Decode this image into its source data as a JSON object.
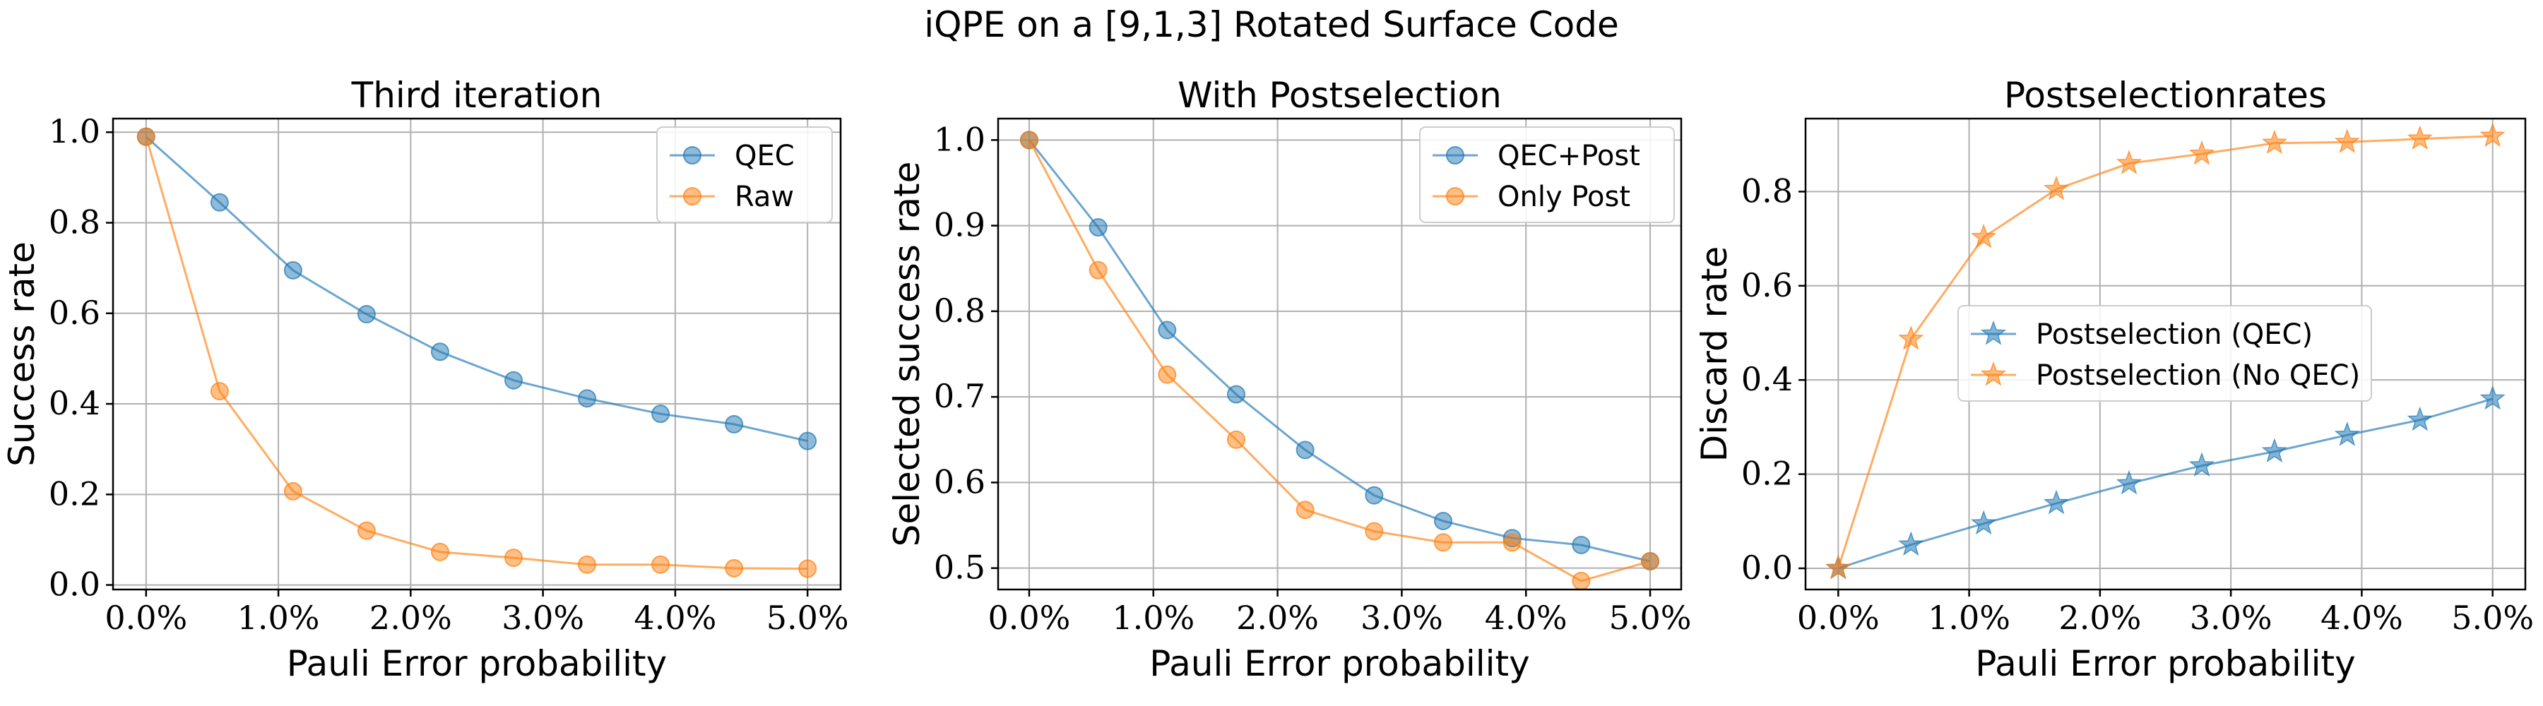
{
  "figure": {
    "suptitle": "iQPE on a [9,1,3] Rotated Surface Code"
  },
  "colors": {
    "blue": "#1f77b4",
    "orange": "#ff7f0e",
    "grid": "#b0b0b0",
    "axes": "#000000"
  },
  "chart_data": [
    {
      "type": "line",
      "title": "Third iteration",
      "xlabel": "Pauli Error probability",
      "ylabel": "Success rate",
      "x": [
        0.0,
        0.5556,
        1.1111,
        1.6667,
        2.2222,
        2.7778,
        3.3333,
        3.8889,
        4.4444,
        5.0
      ],
      "xlim": [
        -0.25,
        5.25
      ],
      "ylim": [
        -0.01,
        1.03
      ],
      "xticks": [
        0.0,
        1.0,
        2.0,
        3.0,
        4.0,
        5.0
      ],
      "xtick_labels": [
        "0.0%",
        "1.0%",
        "2.0%",
        "3.0%",
        "4.0%",
        "5.0%"
      ],
      "yticks": [
        0.0,
        0.2,
        0.4,
        0.6,
        0.8,
        1.0
      ],
      "ytick_labels": [
        "0.0",
        "0.2",
        "0.4",
        "0.6",
        "0.8",
        "1.0"
      ],
      "grid": true,
      "legend_position": "top-right",
      "series": [
        {
          "name": "QEC",
          "color": "#1f77b4",
          "marker": "circle",
          "values": [
            0.99,
            0.845,
            0.695,
            0.598,
            0.515,
            0.452,
            0.412,
            0.378,
            0.355,
            0.318
          ]
        },
        {
          "name": "Raw",
          "color": "#ff7f0e",
          "marker": "circle",
          "values": [
            0.99,
            0.428,
            0.207,
            0.12,
            0.073,
            0.06,
            0.045,
            0.045,
            0.037,
            0.036
          ]
        }
      ]
    },
    {
      "type": "line",
      "title": "With Postselection",
      "xlabel": "Pauli Error probability",
      "ylabel": "Selected success rate",
      "x": [
        0.0,
        0.5556,
        1.1111,
        1.6667,
        2.2222,
        2.7778,
        3.3333,
        3.8889,
        4.4444,
        5.0
      ],
      "xlim": [
        -0.25,
        5.25
      ],
      "ylim": [
        0.475,
        1.025
      ],
      "xticks": [
        0.0,
        1.0,
        2.0,
        3.0,
        4.0,
        5.0
      ],
      "xtick_labels": [
        "0.0%",
        "1.0%",
        "2.0%",
        "3.0%",
        "4.0%",
        "5.0%"
      ],
      "yticks": [
        0.5,
        0.6,
        0.7,
        0.8,
        0.9,
        1.0
      ],
      "ytick_labels": [
        "0.5",
        "0.6",
        "0.7",
        "0.8",
        "0.9",
        "1.0"
      ],
      "grid": true,
      "legend_position": "top-right",
      "series": [
        {
          "name": "QEC+Post",
          "color": "#1f77b4",
          "marker": "circle",
          "values": [
            1.0,
            0.898,
            0.778,
            0.703,
            0.638,
            0.585,
            0.555,
            0.535,
            0.527,
            0.508
          ]
        },
        {
          "name": "Only Post",
          "color": "#ff7f0e",
          "marker": "circle",
          "values": [
            1.0,
            0.848,
            0.726,
            0.65,
            0.568,
            0.543,
            0.53,
            0.53,
            0.485,
            0.508
          ]
        }
      ]
    },
    {
      "type": "line",
      "title": "Postselectionrates",
      "xlabel": "Pauli Error probability",
      "ylabel": "Discard rate",
      "x": [
        0.0,
        0.5556,
        1.1111,
        1.6667,
        2.2222,
        2.7778,
        3.3333,
        3.8889,
        4.4444,
        5.0
      ],
      "xlim": [
        -0.25,
        5.25
      ],
      "ylim": [
        -0.045,
        0.955
      ],
      "xticks": [
        0.0,
        1.0,
        2.0,
        3.0,
        4.0,
        5.0
      ],
      "xtick_labels": [
        "0.0%",
        "1.0%",
        "2.0%",
        "3.0%",
        "4.0%",
        "5.0%"
      ],
      "yticks": [
        0.0,
        0.2,
        0.4,
        0.6,
        0.8
      ],
      "ytick_labels": [
        "0.0",
        "0.2",
        "0.4",
        "0.6",
        "0.8"
      ],
      "grid": true,
      "legend_position": "center-right",
      "series": [
        {
          "name": "Postselection (QEC)",
          "color": "#1f77b4",
          "marker": "star",
          "values": [
            0.0,
            0.05,
            0.095,
            0.138,
            0.18,
            0.218,
            0.248,
            0.283,
            0.315,
            0.36
          ]
        },
        {
          "name": "Postselection (No QEC)",
          "color": "#ff7f0e",
          "marker": "star",
          "values": [
            0.0,
            0.487,
            0.703,
            0.805,
            0.86,
            0.88,
            0.903,
            0.905,
            0.912,
            0.918
          ]
        }
      ]
    }
  ]
}
